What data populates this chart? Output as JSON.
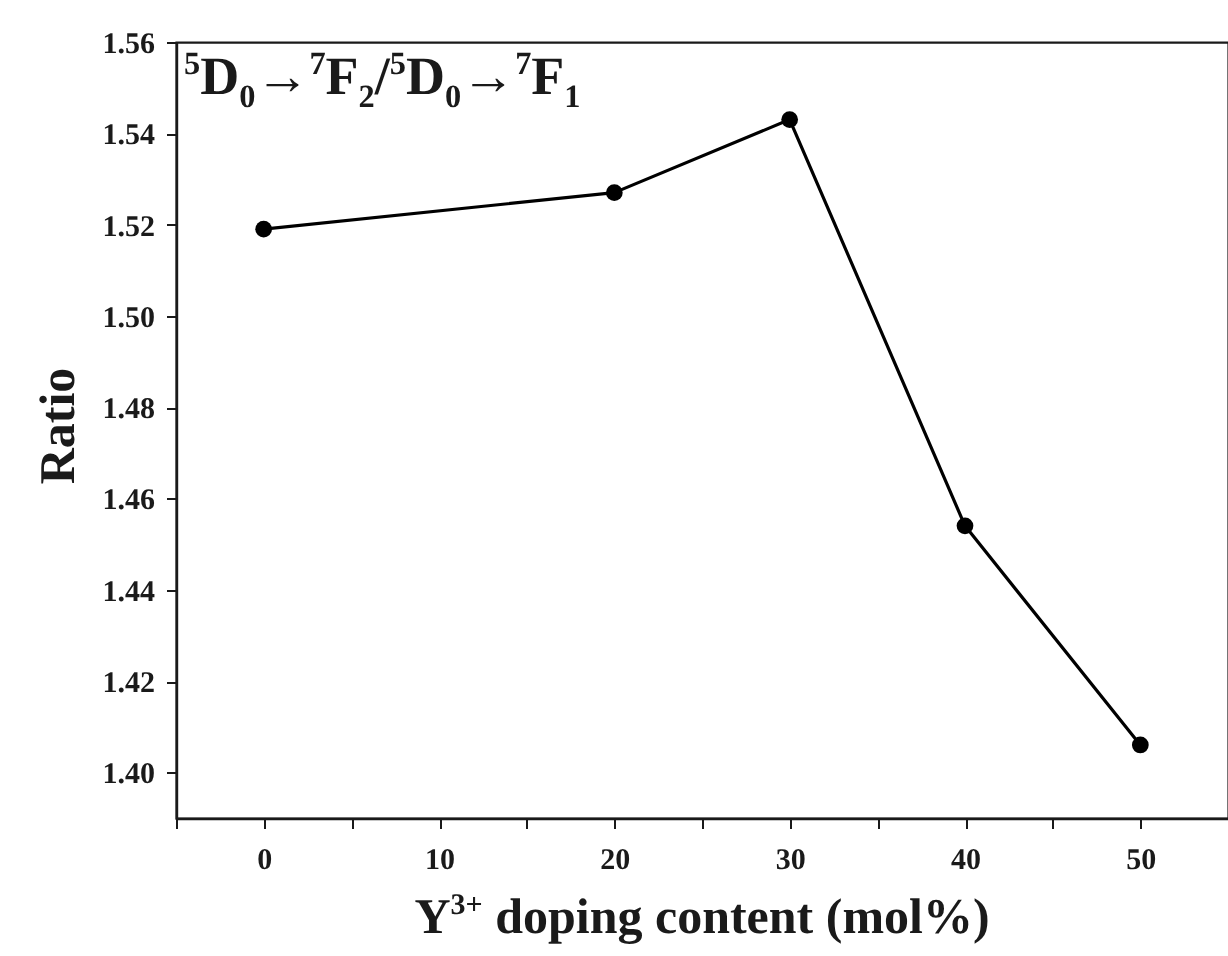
{
  "chart_data": {
    "type": "line",
    "xlabel": "Y$^{3+}$ doping content (mol%)",
    "ylabel": "Ratio",
    "annotations": [
      "$^{5}$D$_{0}$→$^{7}$F$_{2}$/$^{5}$D$_{0}$→$^{7}$F$_{1}$"
    ],
    "x": [
      0,
      20,
      30,
      40,
      50
    ],
    "series": [
      {
        "color": "#000000",
        "values": [
          1.519,
          1.527,
          1.543,
          1.454,
          1.406
        ]
      }
    ],
    "xlim": [
      -5,
      55
    ],
    "xticks": [
      {
        "value": -5,
        "label": null
      },
      0,
      {
        "value": 5,
        "label": null
      },
      10,
      {
        "value": 15,
        "label": null
      },
      20,
      {
        "value": 25,
        "label": null
      },
      30,
      {
        "value": 35,
        "label": null
      },
      40,
      {
        "value": 45,
        "label": null
      },
      50,
      {
        "value": 55,
        "label": null
      }
    ],
    "ylim": [
      1.39,
      1.56
    ],
    "yticks": [
      {
        "value": 1.4,
        "label": "1.40"
      },
      1.42,
      1.44,
      1.46,
      1.48,
      {
        "value": 1.5,
        "label": "1.50"
      },
      1.52,
      1.54,
      1.56
    ],
    "marker": "circle",
    "line_style": "solid",
    "grid": false
  }
}
